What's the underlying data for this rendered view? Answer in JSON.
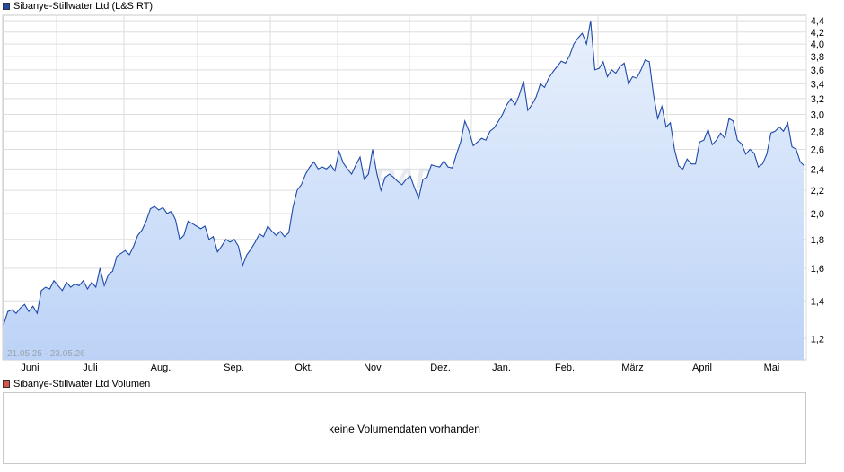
{
  "price_panel": {
    "legend_label": "Sibanye-Stillwater Ltd (L&S RT)",
    "legend_color": "#1f4aa8",
    "date_range_label": "21.05.25 - 23.05.26",
    "watermark": "TRADE"
  },
  "volume_panel": {
    "legend_label": "Sibanye-Stillwater Ltd Volumen",
    "legend_color": "#d9534f",
    "empty_message": "keine Volumendaten vorhanden"
  },
  "colors": {
    "line": "#1f4aa8",
    "fill_top": "#e8f0fc",
    "fill_bottom": "#bcd3f7",
    "grid": "#dedede"
  },
  "chart_data": {
    "type": "area",
    "title": "Sibanye-Stillwater Ltd (L&S RT)",
    "y_scale": "log",
    "y_ticks": [
      "4,4",
      "4,2",
      "4,0",
      "3,8",
      "3,6",
      "3,4",
      "3,2",
      "3,0",
      "2,8",
      "2,6",
      "2,4",
      "2,2",
      "2,0",
      "1,8",
      "1,6",
      "1,4",
      "1,2"
    ],
    "x_ticks": [
      "Juni",
      "Juli",
      "Aug.",
      "Sep.",
      "Okt.",
      "Nov.",
      "Dez.",
      "Jan.",
      "Feb.",
      "März",
      "April",
      "Mai"
    ],
    "ylim": [
      1.1,
      4.5
    ],
    "grid": true,
    "series": [
      {
        "values": [
          1.27,
          1.34,
          1.35,
          1.33,
          1.36,
          1.38,
          1.34,
          1.37,
          1.33,
          1.46,
          1.48,
          1.47,
          1.52,
          1.49,
          1.46,
          1.51,
          1.48,
          1.5,
          1.49,
          1.52,
          1.47,
          1.51,
          1.48,
          1.6,
          1.49,
          1.56,
          1.58,
          1.68,
          1.7,
          1.72,
          1.69,
          1.75,
          1.83,
          1.87,
          1.94,
          2.04,
          2.06,
          2.03,
          2.05,
          2.0,
          2.02,
          1.95,
          1.8,
          1.83,
          1.94,
          1.92,
          1.9,
          1.88,
          1.9,
          1.8,
          1.82,
          1.71,
          1.75,
          1.8,
          1.78,
          1.8,
          1.75,
          1.62,
          1.69,
          1.73,
          1.78,
          1.84,
          1.82,
          1.9,
          1.86,
          1.83,
          1.86,
          1.82,
          1.85,
          2.05,
          2.2,
          2.25,
          2.35,
          2.42,
          2.47,
          2.4,
          2.42,
          2.4,
          2.44,
          2.38,
          2.58,
          2.46,
          2.4,
          2.35,
          2.44,
          2.52,
          2.3,
          2.35,
          2.6,
          2.36,
          2.2,
          2.32,
          2.35,
          2.32,
          2.28,
          2.25,
          2.3,
          2.33,
          2.22,
          2.13,
          2.3,
          2.32,
          2.44,
          2.43,
          2.42,
          2.48,
          2.42,
          2.41,
          2.55,
          2.68,
          2.92,
          2.8,
          2.64,
          2.68,
          2.72,
          2.7,
          2.8,
          2.84,
          2.92,
          3.0,
          3.12,
          3.2,
          3.12,
          3.25,
          3.44,
          3.05,
          3.12,
          3.22,
          3.4,
          3.35,
          3.48,
          3.57,
          3.65,
          3.73,
          3.7,
          3.82,
          4.0,
          4.1,
          4.18,
          4.0,
          4.4,
          3.6,
          3.62,
          3.72,
          3.5,
          3.6,
          3.55,
          3.65,
          3.7,
          3.4,
          3.5,
          3.48,
          3.6,
          3.75,
          3.72,
          3.25,
          2.95,
          3.1,
          2.85,
          2.9,
          2.6,
          2.43,
          2.4,
          2.5,
          2.45,
          2.45,
          2.68,
          2.7,
          2.82,
          2.65,
          2.7,
          2.78,
          2.72,
          2.95,
          2.92,
          2.7,
          2.66,
          2.55,
          2.6,
          2.56,
          2.42,
          2.45,
          2.55,
          2.78,
          2.8,
          2.85,
          2.8,
          2.9,
          2.63,
          2.6,
          2.47,
          2.43
        ]
      }
    ]
  }
}
